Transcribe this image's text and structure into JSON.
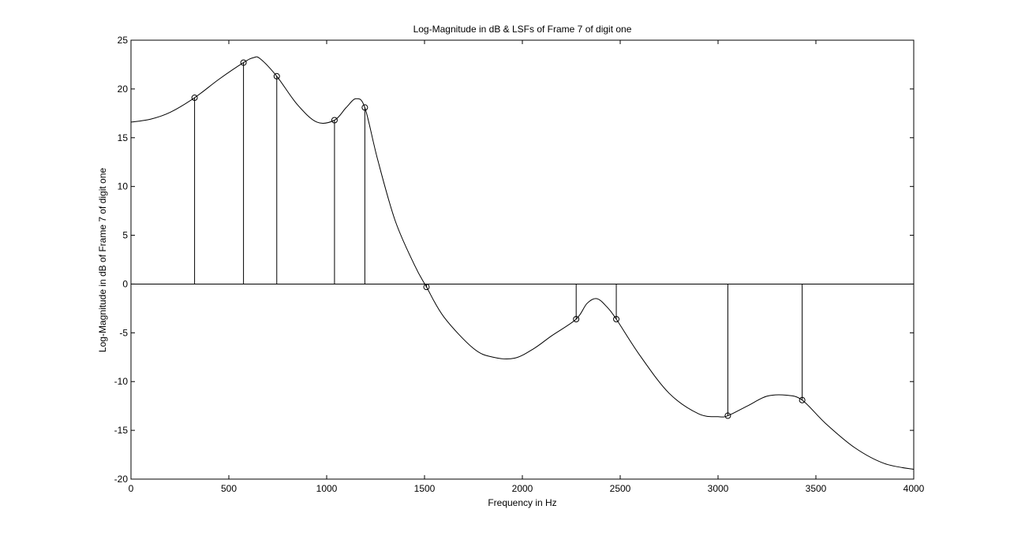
{
  "chart_data": {
    "type": "line",
    "title": "Log-Magnitude in dB & LSFs of Frame 7 of digit one",
    "xlabel": "Frequency in Hz",
    "ylabel": "Log-Magnitude in dB of Frame 7 of digit one",
    "xlim": [
      0,
      4000
    ],
    "ylim": [
      -20,
      25
    ],
    "xticks": [
      0,
      500,
      1000,
      1500,
      2000,
      2500,
      3000,
      3500,
      4000
    ],
    "yticks": [
      -20,
      -15,
      -10,
      -5,
      0,
      5,
      10,
      15,
      20,
      25
    ],
    "grid": false,
    "series": [
      {
        "x": [
          0,
          100,
          200,
          325,
          450,
          575,
          625,
          660,
          745,
          850,
          950,
          1040,
          1100,
          1150,
          1195,
          1260,
          1350,
          1450,
          1510,
          1600,
          1750,
          1850,
          1960,
          2060,
          2150,
          2275,
          2330,
          2380,
          2430,
          2480,
          2600,
          2750,
          2900,
          3000,
          3050,
          3150,
          3250,
          3350,
          3430,
          3550,
          3700,
          3850,
          4000
        ],
        "y": [
          16.6,
          16.9,
          17.6,
          19.1,
          21.0,
          22.7,
          23.2,
          23.1,
          21.3,
          18.4,
          16.6,
          16.8,
          18.1,
          19.0,
          18.1,
          12.8,
          6.5,
          1.9,
          -0.3,
          -3.4,
          -6.6,
          -7.5,
          -7.6,
          -6.6,
          -5.3,
          -3.6,
          -2.0,
          -1.5,
          -2.3,
          -3.6,
          -7.3,
          -11.2,
          -13.3,
          -13.6,
          -13.5,
          -12.5,
          -11.5,
          -11.4,
          -11.9,
          -14.3,
          -16.8,
          -18.4,
          -19.0
        ]
      }
    ],
    "markers": {
      "x": [
        325,
        575,
        745,
        1040,
        1195,
        1510,
        2275,
        2480,
        3050,
        3430
      ],
      "y": [
        19.1,
        22.7,
        21.3,
        16.8,
        18.1,
        -0.3,
        -3.6,
        -3.6,
        -13.5,
        -11.9
      ]
    }
  }
}
